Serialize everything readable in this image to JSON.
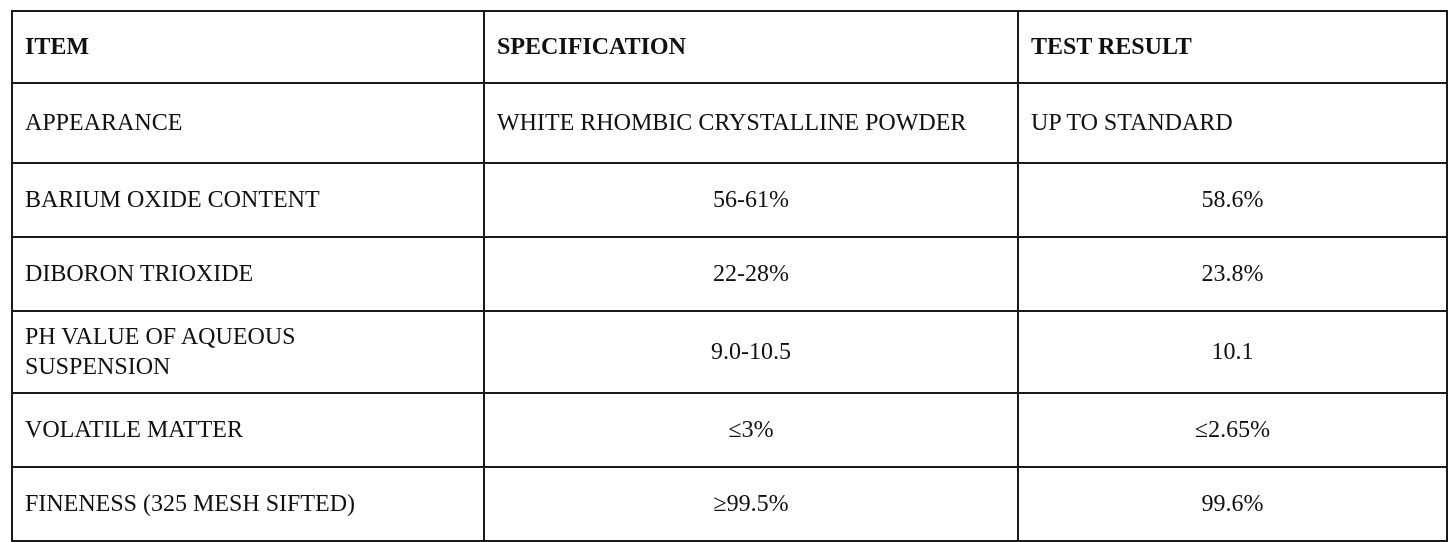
{
  "table": {
    "headers": [
      "ITEM",
      "SPECIFICATION",
      "TEST RESULT"
    ],
    "rows": [
      {
        "item": "APPEARANCE",
        "specification": "WHITE RHOMBIC CRYSTALLINE POWDER",
        "test_result": "UP TO STANDARD"
      },
      {
        "item": "BARIUM OXIDE CONTENT",
        "specification": "56-61%",
        "test_result": "58.6%"
      },
      {
        "item": "DIBORON TRIOXIDE",
        "specification": "22-28%",
        "test_result": "23.8%"
      },
      {
        "item": "PH VALUE OF AQUEOUS SUSPENSION",
        "specification": "9.0-10.5",
        "test_result": "10.1"
      },
      {
        "item": "VOLATILE MATTER",
        "specification": "≤3%",
        "test_result": "≤2.65%"
      },
      {
        "item": "FINENESS (325 MESH SIFTED)",
        "specification": "≥99.5%",
        "test_result": "99.6%"
      }
    ]
  }
}
